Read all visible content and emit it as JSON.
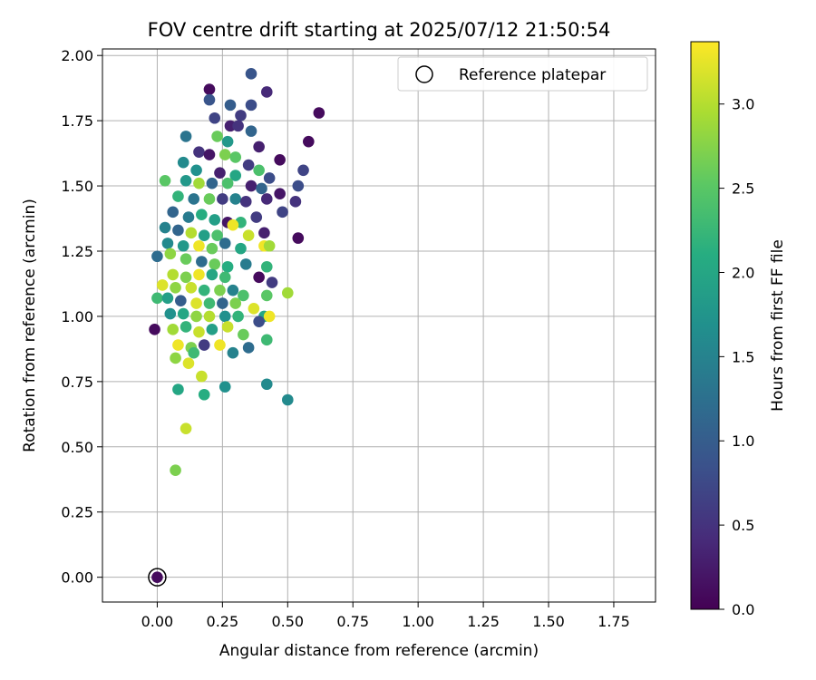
{
  "chart_data": {
    "type": "scatter",
    "title": "FOV centre drift starting at 2025/07/12 21:50:54",
    "xlabel": "Angular distance from reference (arcmin)",
    "ylabel": "Rotation from reference (arcmin)",
    "xlim": [
      -0.21,
      1.91
    ],
    "ylim": [
      -0.095,
      2.025
    ],
    "xticks": [
      0.0,
      0.25,
      0.5,
      0.75,
      1.0,
      1.25,
      1.5,
      1.75
    ],
    "xtick_labels": [
      "0.00",
      "0.25",
      "0.50",
      "0.75",
      "1.00",
      "1.25",
      "1.50",
      "1.75"
    ],
    "yticks": [
      0.0,
      0.25,
      0.5,
      0.75,
      1.0,
      1.25,
      1.5,
      1.75,
      2.0
    ],
    "ytick_labels": [
      "0.00",
      "0.25",
      "0.50",
      "0.75",
      "1.00",
      "1.25",
      "1.50",
      "1.75",
      "2.00"
    ],
    "grid": true,
    "legend": {
      "placement": "top-right",
      "entries": [
        "Reference platepar"
      ]
    },
    "colorbar": {
      "label": "Hours from first FF file",
      "min": 0.0,
      "max": 3.37,
      "ticks": [
        0.0,
        0.5,
        1.0,
        1.5,
        2.0,
        2.5,
        3.0
      ],
      "tick_labels": [
        "0.0",
        "0.5",
        "1.0",
        "1.5",
        "2.0",
        "2.5",
        "3.0"
      ],
      "colormap": "viridis"
    },
    "reference_point": {
      "x": 0.0,
      "y": 0.0
    },
    "points": [
      [
        0.36,
        1.93,
        0.9
      ],
      [
        0.2,
        1.87,
        0.1
      ],
      [
        0.42,
        1.86,
        0.4
      ],
      [
        0.62,
        1.78,
        0.1
      ],
      [
        0.58,
        1.67,
        0.1
      ],
      [
        0.2,
        1.83,
        0.9
      ],
      [
        0.28,
        1.81,
        1.0
      ],
      [
        0.36,
        1.81,
        0.8
      ],
      [
        0.32,
        1.77,
        0.6
      ],
      [
        0.22,
        1.76,
        0.7
      ],
      [
        0.28,
        1.73,
        0.3
      ],
      [
        0.31,
        1.73,
        0.5
      ],
      [
        0.36,
        1.71,
        1.1
      ],
      [
        0.11,
        1.69,
        1.3
      ],
      [
        0.23,
        1.69,
        2.6
      ],
      [
        0.27,
        1.67,
        1.8
      ],
      [
        0.39,
        1.65,
        0.3
      ],
      [
        0.16,
        1.63,
        0.5
      ],
      [
        0.2,
        1.62,
        0.2
      ],
      [
        0.26,
        1.62,
        2.7
      ],
      [
        0.3,
        1.61,
        2.5
      ],
      [
        0.47,
        1.6,
        0.1
      ],
      [
        0.1,
        1.59,
        1.6
      ],
      [
        0.15,
        1.56,
        1.7
      ],
      [
        0.35,
        1.58,
        0.6
      ],
      [
        0.39,
        1.56,
        2.4
      ],
      [
        0.56,
        1.56,
        0.7
      ],
      [
        0.24,
        1.55,
        0.3
      ],
      [
        0.3,
        1.54,
        2.0
      ],
      [
        0.43,
        1.53,
        0.8
      ],
      [
        0.11,
        1.52,
        1.8
      ],
      [
        0.16,
        1.51,
        2.9
      ],
      [
        0.21,
        1.51,
        1.1
      ],
      [
        0.27,
        1.51,
        2.4
      ],
      [
        0.36,
        1.5,
        0.3
      ],
      [
        0.4,
        1.49,
        1.1
      ],
      [
        0.47,
        1.47,
        0.2
      ],
      [
        0.54,
        1.5,
        0.8
      ],
      [
        0.03,
        1.52,
        2.5
      ],
      [
        0.08,
        1.46,
        2.2
      ],
      [
        0.14,
        1.45,
        1.3
      ],
      [
        0.2,
        1.45,
        2.6
      ],
      [
        0.25,
        1.45,
        0.6
      ],
      [
        0.3,
        1.45,
        1.5
      ],
      [
        0.34,
        1.44,
        0.5
      ],
      [
        0.42,
        1.45,
        0.4
      ],
      [
        0.06,
        1.4,
        1.1
      ],
      [
        0.12,
        1.38,
        1.4
      ],
      [
        0.17,
        1.39,
        2.1
      ],
      [
        0.22,
        1.37,
        1.9
      ],
      [
        0.27,
        1.36,
        0.2
      ],
      [
        0.32,
        1.36,
        2.2
      ],
      [
        0.38,
        1.38,
        0.6
      ],
      [
        0.48,
        1.4,
        0.7
      ],
      [
        0.53,
        1.44,
        0.5
      ],
      [
        0.03,
        1.34,
        1.5
      ],
      [
        0.08,
        1.33,
        1.1
      ],
      [
        0.13,
        1.32,
        3.0
      ],
      [
        0.18,
        1.31,
        1.9
      ],
      [
        0.23,
        1.31,
        2.4
      ],
      [
        0.29,
        1.35,
        3.3
      ],
      [
        0.35,
        1.31,
        3.1
      ],
      [
        0.41,
        1.32,
        0.3
      ],
      [
        0.04,
        1.28,
        1.6
      ],
      [
        0.1,
        1.27,
        1.8
      ],
      [
        0.16,
        1.27,
        3.3
      ],
      [
        0.21,
        1.26,
        2.6
      ],
      [
        0.26,
        1.28,
        1.2
      ],
      [
        0.32,
        1.26,
        2.0
      ],
      [
        0.41,
        1.27,
        3.3
      ],
      [
        0.43,
        1.27,
        2.9
      ],
      [
        0.54,
        1.3,
        0.1
      ],
      [
        0.0,
        1.23,
        1.2
      ],
      [
        0.05,
        1.24,
        2.8
      ],
      [
        0.11,
        1.22,
        2.6
      ],
      [
        0.17,
        1.21,
        1.2
      ],
      [
        0.22,
        1.2,
        2.6
      ],
      [
        0.27,
        1.19,
        2.1
      ],
      [
        0.34,
        1.2,
        1.4
      ],
      [
        0.42,
        1.19,
        2.2
      ],
      [
        0.06,
        1.16,
        3.0
      ],
      [
        0.11,
        1.15,
        2.7
      ],
      [
        0.16,
        1.16,
        3.3
      ],
      [
        0.21,
        1.16,
        2.0
      ],
      [
        0.26,
        1.15,
        2.3
      ],
      [
        0.39,
        1.15,
        0.1
      ],
      [
        0.44,
        1.13,
        0.6
      ],
      [
        0.02,
        1.12,
        3.2
      ],
      [
        0.07,
        1.11,
        2.8
      ],
      [
        0.13,
        1.11,
        3.1
      ],
      [
        0.18,
        1.1,
        2.2
      ],
      [
        0.24,
        1.1,
        2.7
      ],
      [
        0.29,
        1.1,
        1.5
      ],
      [
        0.33,
        1.08,
        2.4
      ],
      [
        0.0,
        1.07,
        2.3
      ],
      [
        0.04,
        1.07,
        1.9
      ],
      [
        0.09,
        1.06,
        1.0
      ],
      [
        0.15,
        1.05,
        3.2
      ],
      [
        0.2,
        1.05,
        2.3
      ],
      [
        0.25,
        1.05,
        1.1
      ],
      [
        0.3,
        1.05,
        2.7
      ],
      [
        0.42,
        1.08,
        2.5
      ],
      [
        0.5,
        1.09,
        2.9
      ],
      [
        0.05,
        1.01,
        1.7
      ],
      [
        0.1,
        1.01,
        2.0
      ],
      [
        0.15,
        1.0,
        2.8
      ],
      [
        0.2,
        1.0,
        3.0
      ],
      [
        0.26,
        1.0,
        1.7
      ],
      [
        0.31,
        1.0,
        2.2
      ],
      [
        0.37,
        1.03,
        3.2
      ],
      [
        0.41,
        1.0,
        2.0
      ],
      [
        0.43,
        1.0,
        3.3
      ],
      [
        -0.01,
        0.95,
        0.1
      ],
      [
        0.06,
        0.95,
        2.9
      ],
      [
        0.11,
        0.96,
        2.2
      ],
      [
        0.16,
        0.94,
        3.1
      ],
      [
        0.21,
        0.95,
        1.9
      ],
      [
        0.27,
        0.96,
        3.1
      ],
      [
        0.33,
        0.93,
        2.6
      ],
      [
        0.39,
        0.98,
        0.8
      ],
      [
        0.08,
        0.89,
        3.3
      ],
      [
        0.13,
        0.88,
        2.7
      ],
      [
        0.18,
        0.89,
        0.6
      ],
      [
        0.24,
        0.89,
        3.3
      ],
      [
        0.29,
        0.86,
        1.5
      ],
      [
        0.35,
        0.88,
        1.2
      ],
      [
        0.42,
        0.91,
        2.3
      ],
      [
        0.07,
        0.84,
        2.8
      ],
      [
        0.12,
        0.82,
        3.2
      ],
      [
        0.14,
        0.86,
        2.3
      ],
      [
        0.17,
        0.77,
        3.1
      ],
      [
        0.08,
        0.72,
        2.0
      ],
      [
        0.18,
        0.7,
        2.1
      ],
      [
        0.26,
        0.73,
        1.7
      ],
      [
        0.42,
        0.74,
        1.6
      ],
      [
        0.5,
        0.68,
        1.6
      ],
      [
        0.11,
        0.57,
        3.1
      ],
      [
        0.07,
        0.41,
        2.7
      ],
      [
        0.0,
        0.0,
        0.1
      ]
    ]
  }
}
